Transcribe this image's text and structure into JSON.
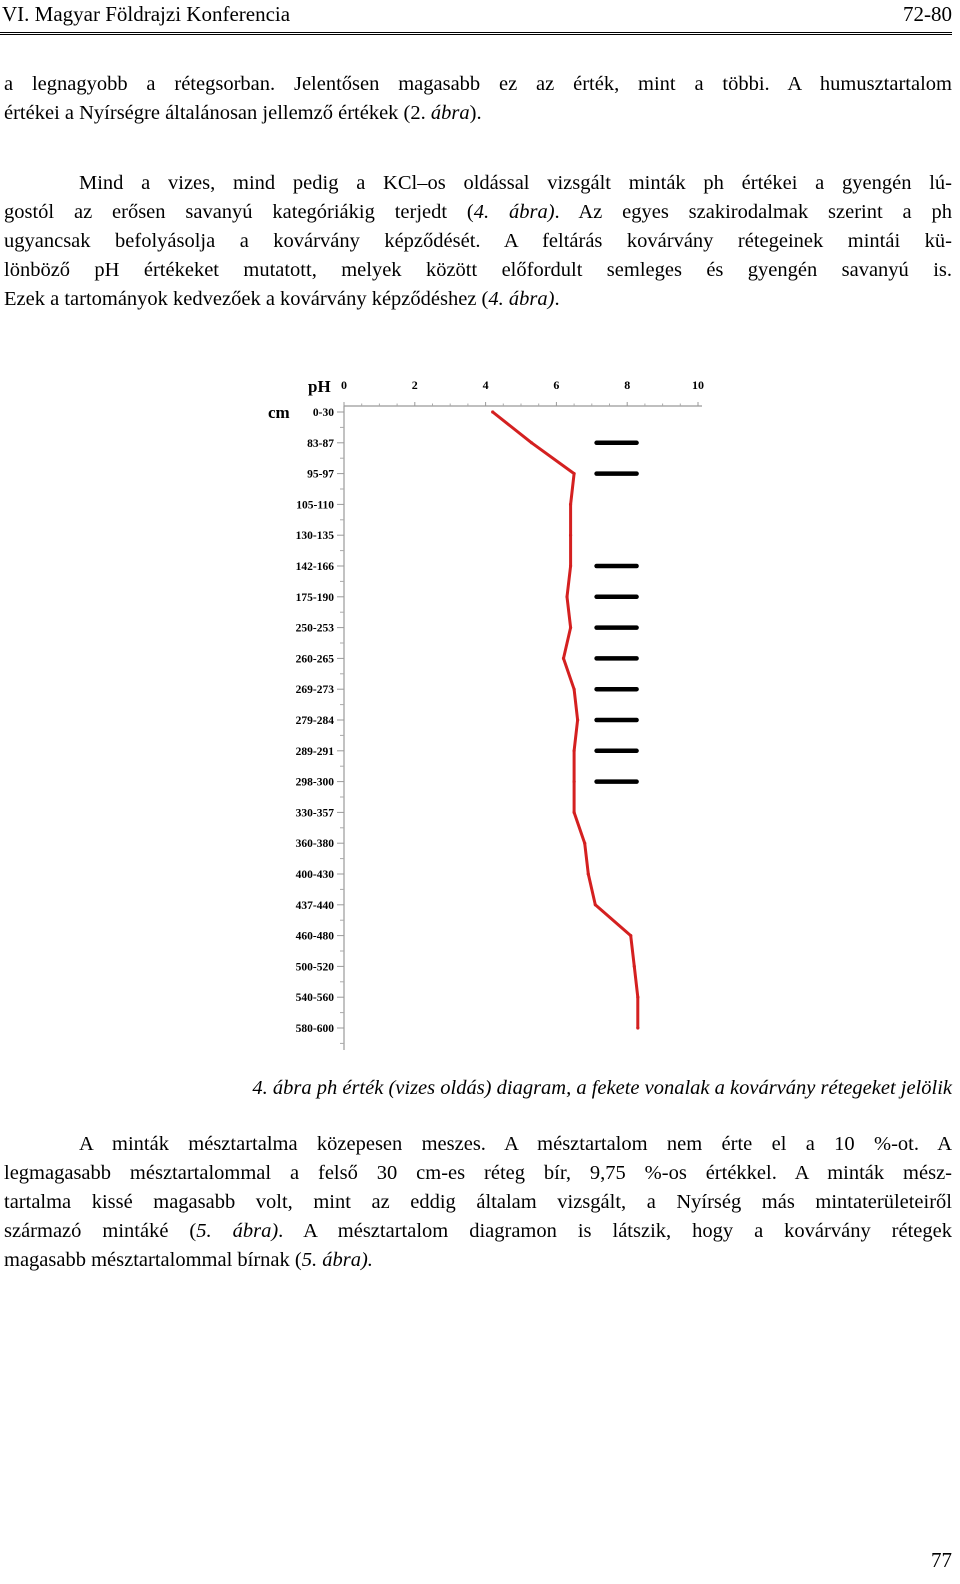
{
  "header": {
    "left": "VI. Magyar Földrajzi Konferencia",
    "right": "72-80"
  },
  "para1": [
    "a legnagyobb a rétegsorban. Jelentősen magasabb ez az érték, mint a többi. A humusztartalom",
    "értékei a Nyírségre általánosan jellemző értékek (2. ",
    "ábra",
    ")."
  ],
  "para2": {
    "l1": "Mind a vizes, mind pedig a KCl–os oldással vizsgált minták ph értékei a gyengén lú-",
    "l2a": "gostól az erősen savanyú kategóriákig terjedt (",
    "l2b": "4. ábra)",
    "l2c": ". Az egyes szakirodalmak szerint a ph",
    "l3": "ugyancsak befolyásolja a kovárvány képződését. A feltárás kovárvány rétegeinek mintái kü-",
    "l4": "lönböző pH értékeket mutatott, melyek között előfordult semleges és gyengén savanyú is.",
    "l5a": "Ezek a tartományok kedvezőek a kovárvány képződéshez (",
    "l5b": "4. ábra)",
    "l5c": "."
  },
  "caption": "4. ábra ph érték (vizes oldás) diagram, a fekete vonalak a kovárvány rétegeket jelölik",
  "para3": {
    "l1": "A minták mésztartalma közepesen meszes. A mésztartalom nem érte el a 10 %-ot. A",
    "l2": "legmagasabb mésztartalommal a felső 30 cm-es réteg bír, 9,75 %-os értékkel. A minták mész-",
    "l3": "tartalma kissé magasabb volt, mint az eddig általam vizsgált, a Nyírség más mintaterületeiről",
    "l4a": "származó mintáké (",
    "l4b": "5. ábra)",
    "l4c": ". A mésztartalom diagramon is látszik, hogy a kovárvány rétegek",
    "l5a": "magasabb mésztartalommal bírnak (",
    "l5b": "5. ábra).",
    "l5c": ""
  },
  "page_number": "77",
  "chart_data": {
    "type": "line",
    "title": "",
    "xlabel": "pH",
    "ylabel": "cm",
    "xlim": [
      0,
      10
    ],
    "x_ticks": [
      "0",
      "2",
      "4",
      "6",
      "8",
      "10"
    ],
    "categories": [
      "0-30",
      "83-87",
      "95-97",
      "105-110",
      "130-135",
      "142-166",
      "175-190",
      "250-253",
      "260-265",
      "269-273",
      "279-284",
      "289-291",
      "298-300",
      "330-357",
      "360-380",
      "400-430",
      "437-440",
      "460-480",
      "500-520",
      "540-560",
      "580-600"
    ],
    "series": [
      {
        "color": "#d42020",
        "values": [
          4.2,
          5.3,
          6.5,
          6.4,
          6.4,
          6.4,
          6.3,
          6.4,
          6.2,
          6.5,
          6.6,
          6.5,
          6.5,
          6.5,
          6.8,
          6.9,
          7.1,
          8.1,
          8.2,
          8.3,
          8.3
        ]
      }
    ],
    "kovarvany_layers": {
      "color": "#000000",
      "categories": [
        "83-87",
        "95-97",
        "142-166",
        "175-190",
        "250-253",
        "260-265",
        "269-273",
        "279-284",
        "289-291",
        "298-300"
      ],
      "values": [
        7.7,
        7.7,
        7.7,
        7.7,
        7.7,
        7.7,
        7.7,
        7.7,
        7.7,
        7.7
      ]
    },
    "grid": false
  }
}
